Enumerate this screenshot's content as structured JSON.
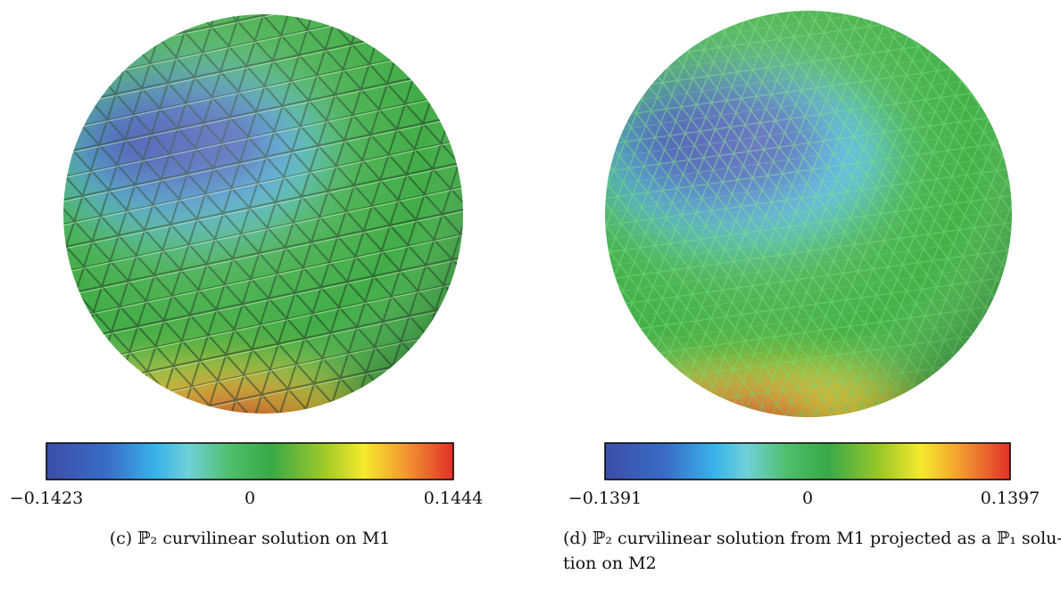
{
  "panels": [
    {
      "colorbar": {
        "ticks": [
          "−0.1423",
          "0",
          "0.1444"
        ]
      },
      "caption": {
        "lines": [
          "(c) ℙ₂ curvilinear solution on M1"
        ]
      }
    },
    {
      "colorbar": {
        "ticks": [
          "−0.1391",
          "0",
          "0.1397"
        ]
      },
      "caption": {
        "lines": [
          "(d) ℙ₂ curvilinear solution from M1 projected as a ℙ₁ solu-",
          "tion on M2"
        ]
      }
    }
  ]
}
